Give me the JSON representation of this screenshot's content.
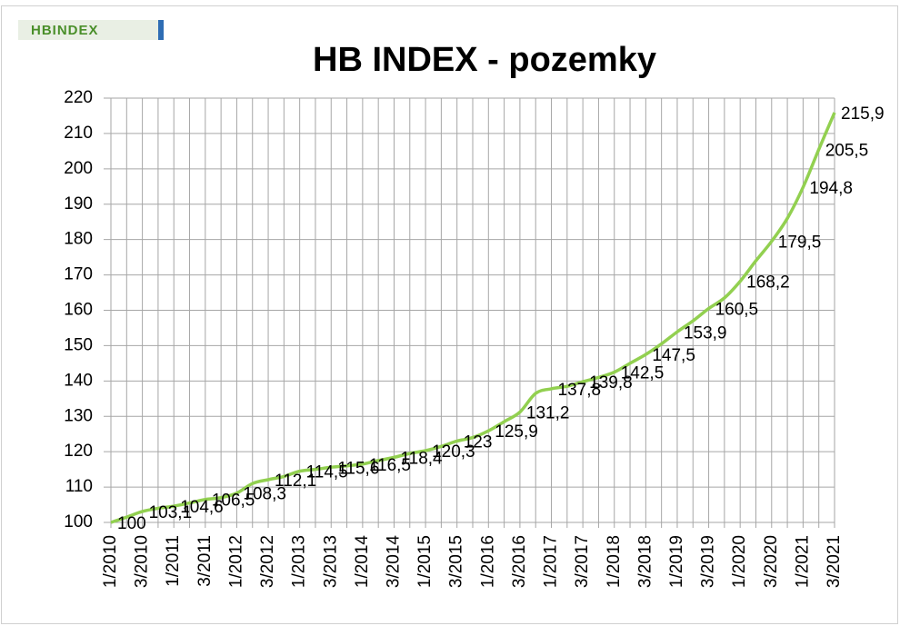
{
  "chart_data": {
    "type": "line",
    "logo": "HBINDEX",
    "title": "HB INDEX - pozemky",
    "categories": [
      "1/2010",
      null,
      "3/2010",
      null,
      "1/2011",
      null,
      "3/2011",
      null,
      "1/2012",
      null,
      "3/2012",
      null,
      "1/2013",
      null,
      "3/2013",
      null,
      "1/2014",
      null,
      "3/2014",
      null,
      "1/2015",
      null,
      "3/2015",
      null,
      "1/2016",
      null,
      "3/2016",
      null,
      "1/2017",
      null,
      "3/2017",
      null,
      "1/2018",
      null,
      "3/2018",
      null,
      "1/2019",
      null,
      "3/2019",
      null,
      "1/2020",
      null,
      "3/2020",
      null,
      "1/2021",
      null,
      "3/2021"
    ],
    "values": [
      100,
      101.5,
      103.1,
      104,
      104.6,
      105.5,
      106.5,
      107,
      108.3,
      111,
      112.1,
      113,
      114.5,
      115,
      115.6,
      116,
      116.5,
      117.5,
      118.4,
      119.5,
      120.3,
      121.5,
      123,
      124,
      125.9,
      128.5,
      131.2,
      136.5,
      137.8,
      138.5,
      139.8,
      141,
      142.5,
      145,
      147.5,
      150.5,
      153.9,
      157,
      160.5,
      163.5,
      168.2,
      174,
      179.5,
      186,
      194.8,
      205.5,
      215.9
    ],
    "value_labels": [
      "100",
      null,
      "103,1",
      null,
      "104,6",
      null,
      "106,5",
      null,
      "108,3",
      null,
      "112,1",
      null,
      "114,5",
      null,
      "115,6",
      null,
      "116,5",
      null,
      "118,4",
      null,
      "120,3",
      null,
      "123",
      null,
      "125,9",
      null,
      "131,2",
      null,
      "137,8",
      null,
      "139,8",
      null,
      "142,5",
      null,
      "147,5",
      null,
      "153,9",
      null,
      "160,5",
      null,
      "168,2",
      null,
      "179,5",
      null,
      "194,8",
      "205,5",
      "215,9"
    ],
    "color": "#92d050",
    "ylim": [
      100,
      220
    ],
    "yticks": [
      100,
      110,
      120,
      130,
      140,
      150,
      160,
      170,
      180,
      190,
      200,
      210,
      220
    ],
    "grid": true
  }
}
